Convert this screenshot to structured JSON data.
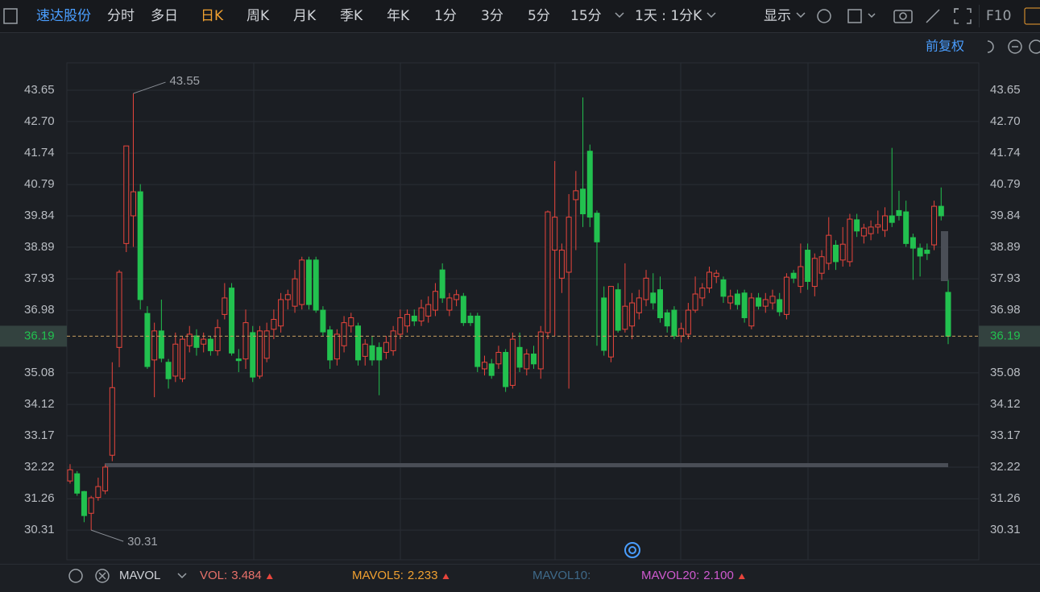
{
  "toolbar": {
    "stock": "速达股份",
    "periods": [
      "分时",
      "多日",
      "日K",
      "周K",
      "月K",
      "季K",
      "年K",
      "1分",
      "3分",
      "5分",
      "15分"
    ],
    "active_period": 2,
    "interval": "1天 : 1分K",
    "display": "显示",
    "f10": "F10",
    "adjust": "前复权"
  },
  "indicator": {
    "name": "MAVOL",
    "items": [
      {
        "label": "VOL:",
        "value": "3.484"
      },
      {
        "label": "MAVOL5:",
        "value": "2.233"
      },
      {
        "label": "MAVOL10:"
      },
      {
        "label": "MAVOL20:",
        "value": "2.100"
      }
    ]
  },
  "chart_data": {
    "type": "candlestick",
    "up_color": "#e8453c",
    "down_color": "#22c14f",
    "grid": true,
    "ylim": [
      29.41,
      44.48
    ],
    "yticks": [
      30.31,
      31.26,
      32.22,
      33.17,
      34.12,
      35.08,
      36.98,
      37.93,
      38.89,
      39.84,
      40.79,
      41.74,
      {
        "value": 42.7,
        "label": "42.70"
      },
      43.65
    ],
    "open": [
      31.8,
      32.02,
      31.48,
      30.82,
      31.3,
      31.5,
      32.58,
      35.85,
      39.0,
      39.84,
      40.57,
      36.88,
      35.47,
      36.35,
      35.4,
      34.98,
      34.9,
      35.9,
      36.2,
      35.95,
      36.1,
      35.75,
      36.85,
      37.65,
      35.5,
      35.5,
      36.3,
      34.98,
      35.52,
      36.4,
      36.5,
      37.3,
      37.1,
      37.15,
      38.5,
      38.5,
      36.98,
      36.38,
      35.5,
      35.9,
      36.5,
      36.5,
      35.58,
      35.9,
      35.85,
      35.7,
      35.75,
      36.25,
      36.5,
      36.8,
      36.65,
      36.8,
      36.98,
      38.2,
      36.98,
      37.3,
      37.4,
      36.8,
      36.8,
      35.2,
      35.35,
      35.35,
      35.7,
      34.7,
      35.85,
      35.2,
      35.65,
      35.2,
      36.3,
      38.8,
      37.95,
      38.13,
      40.33,
      40.65,
      41.8,
      39.92,
      37.35,
      35.56,
      37.6,
      36.4,
      36.5,
      36.9,
      37.3,
      37.5,
      37.6,
      36.9,
      36.98,
      36.2,
      36.25,
      36.98,
      37.35,
      37.65,
      38.0,
      37.9,
      37.2,
      37.47,
      37.5,
      36.5,
      37.35,
      37.1,
      37.2,
      37.3,
      36.85,
      38.1,
      37.7,
      38.8,
      37.7,
      38.1,
      38.4,
      38.95,
      38.5,
      38.45,
      39.72,
      39.23,
      39.3,
      39.5,
      39.4,
      39.84,
      40.0,
      39.96,
      39.18,
      38.86,
      38.8,
      38.96,
      40.13,
      37.52
    ],
    "high": [
      32.31,
      32.1,
      31.5,
      31.35,
      31.9,
      32.3,
      35.4,
      38.2,
      41.96,
      43.55,
      40.8,
      37.1,
      36.6,
      37.3,
      35.5,
      36.3,
      36.2,
      36.5,
      36.4,
      36.3,
      36.2,
      36.7,
      37.8,
      37.8,
      35.8,
      37.0,
      36.5,
      36.5,
      36.6,
      37.0,
      37.5,
      37.6,
      38.2,
      38.6,
      38.6,
      38.6,
      37.1,
      36.5,
      36.4,
      36.8,
      36.9,
      36.6,
      36.1,
      36.2,
      36.0,
      36.2,
      36.5,
      37.0,
      37.0,
      37.0,
      37.3,
      37.4,
      37.8,
      38.4,
      37.5,
      37.6,
      37.5,
      36.9,
      36.9,
      35.6,
      35.5,
      35.9,
      35.8,
      36.3,
      36.3,
      35.8,
      35.9,
      36.5,
      40.0,
      41.5,
      39.0,
      40.5,
      41.2,
      43.43,
      42.0,
      40.0,
      37.7,
      37.7,
      37.8,
      38.4,
      37.5,
      37.6,
      38.2,
      38.1,
      38.0,
      37.0,
      37.1,
      36.6,
      37.2,
      38.0,
      37.8,
      38.3,
      38.2,
      38.0,
      37.6,
      37.6,
      37.6,
      37.5,
      37.5,
      37.5,
      37.6,
      37.5,
      38.1,
      38.2,
      39.0,
      39.0,
      38.7,
      38.8,
      39.8,
      39.1,
      39.5,
      39.9,
      39.9,
      39.6,
      39.7,
      40.0,
      40.1,
      41.9,
      40.6,
      40.3,
      39.3,
      39.0,
      39.0,
      40.3,
      40.7,
      37.9
    ],
    "low": [
      31.72,
      31.35,
      30.55,
      30.31,
      31.2,
      31.4,
      32.4,
      35.25,
      38.74,
      38.9,
      37.0,
      35.2,
      34.34,
      35.4,
      34.6,
      34.8,
      34.8,
      35.7,
      35.6,
      35.7,
      35.6,
      35.6,
      36.7,
      35.6,
      35.1,
      35.2,
      34.8,
      34.9,
      35.4,
      36.1,
      36.3,
      37.0,
      36.9,
      37.0,
      37.0,
      36.9,
      36.2,
      35.2,
      35.3,
      35.7,
      36.3,
      35.3,
      35.3,
      35.3,
      34.4,
      35.5,
      35.6,
      36.1,
      36.3,
      36.5,
      36.5,
      36.6,
      36.8,
      37.2,
      36.8,
      37.1,
      36.5,
      36.5,
      35.1,
      35.0,
      34.9,
      35.2,
      34.5,
      34.6,
      35.1,
      35.0,
      35.2,
      34.9,
      36.1,
      36.2,
      37.5,
      34.6,
      38.8,
      39.5,
      39.5,
      35.9,
      35.6,
      35.4,
      36.3,
      36.3,
      36.1,
      36.7,
      37.1,
      37.0,
      36.6,
      36.3,
      36.1,
      36.0,
      36.1,
      36.9,
      37.1,
      37.5,
      37.8,
      37.2,
      37.0,
      37.0,
      36.6,
      36.4,
      37.0,
      36.9,
      37.0,
      36.8,
      36.7,
      37.8,
      37.5,
      37.6,
      37.4,
      37.9,
      38.2,
      38.2,
      38.3,
      38.3,
      39.2,
      39.0,
      39.1,
      39.3,
      39.2,
      39.5,
      39.7,
      38.9,
      37.9,
      38.0,
      38.5,
      38.8,
      39.7,
      35.95
    ],
    "close": [
      32.14,
      31.43,
      30.75,
      31.29,
      31.63,
      32.22,
      34.63,
      38.13,
      41.96,
      40.57,
      37.3,
      35.27,
      36.35,
      35.52,
      34.9,
      35.95,
      36.1,
      36.25,
      35.85,
      36.1,
      35.75,
      36.45,
      37.35,
      35.68,
      35.45,
      36.6,
      34.95,
      36.35,
      36.35,
      36.7,
      37.3,
      37.45,
      37.93,
      38.5,
      37.15,
      36.98,
      36.32,
      35.47,
      36.25,
      36.6,
      36.75,
      35.47,
      35.95,
      35.47,
      35.47,
      36.0,
      36.35,
      36.75,
      36.85,
      36.65,
      37.05,
      37.15,
      37.55,
      37.35,
      37.35,
      37.45,
      36.6,
      36.6,
      35.27,
      35.4,
      35.0,
      35.7,
      34.66,
      36.1,
      35.25,
      35.65,
      35.35,
      36.32,
      39.96,
      39.8,
      38.8,
      39.8,
      40.6,
      39.9,
      39.8,
      39.05,
      35.76,
      37.7,
      36.37,
      37.1,
      37.2,
      37.35,
      37.95,
      37.2,
      36.75,
      36.5,
      36.2,
      36.42,
      36.98,
      37.47,
      37.65,
      38.13,
      38.1,
      37.4,
      37.4,
      37.15,
      36.75,
      37.35,
      37.1,
      37.3,
      37.4,
      36.93,
      37.98,
      37.95,
      38.3,
      37.85,
      38.55,
      38.6,
      39.25,
      38.45,
      38.98,
      39.74,
      39.38,
      39.47,
      39.5,
      39.57,
      39.84,
      39.64,
      39.85,
      39.0,
      38.86,
      38.62,
      38.7,
      40.13,
      39.84,
      36.19
    ]
  }
}
